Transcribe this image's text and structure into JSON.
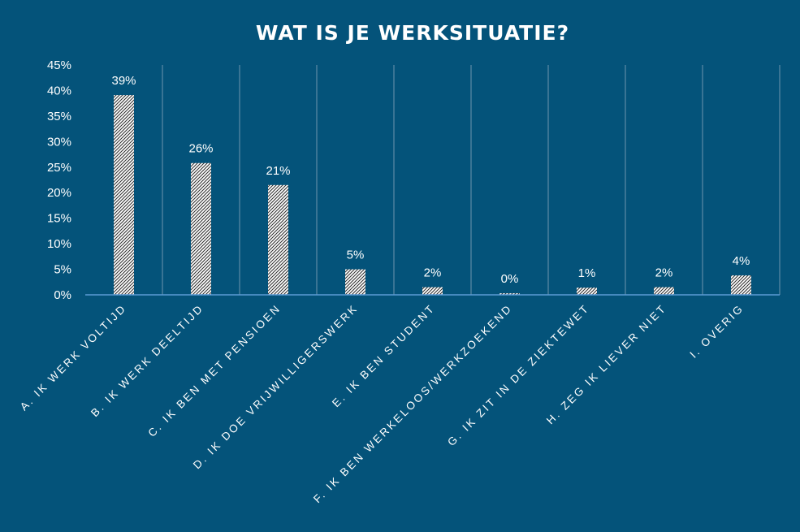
{
  "chart_data": {
    "type": "bar",
    "title": "WAT IS JE WERKSITUATIE?",
    "categories": [
      "A. IK WERK VOLTIJD",
      "B. IK WERK DEELTIJD",
      "C. IK BEN MET PENSIOEN",
      "D. IK DOE VRIJWILLIGERSWERK",
      "E. IK BEN STUDENT",
      "F. IK BEN WERKELOOS/WERKZOEKEND",
      "G. IK ZIT IN DE ZIEKTEWET",
      "H. ZEG IK LIEVER NIET",
      "I. OVERIG"
    ],
    "values": [
      39,
      26,
      21,
      5,
      2,
      0,
      1,
      2,
      4
    ],
    "data_labels": [
      "39%",
      "26%",
      "21%",
      "5%",
      "2%",
      "0%",
      "1%",
      "2%",
      "4%"
    ],
    "bar_heights": [
      39.1,
      25.8,
      21.5,
      5.0,
      1.5,
      0.3,
      1.4,
      1.5,
      3.8
    ],
    "y_ticks": [
      "0%",
      "5%",
      "10%",
      "15%",
      "20%",
      "25%",
      "30%",
      "35%",
      "40%",
      "45%"
    ],
    "ylim": [
      0,
      45
    ],
    "xlabel": "",
    "ylabel": "",
    "grid": "vertical",
    "legend": "none",
    "colors": {
      "background": "#04537a",
      "bar_fill": "#ffffff",
      "bar_hatch": "#2a2a2a",
      "axis_line": "#5b9bd5",
      "gridline": "#6e95ad",
      "text": "#ffffff"
    }
  }
}
